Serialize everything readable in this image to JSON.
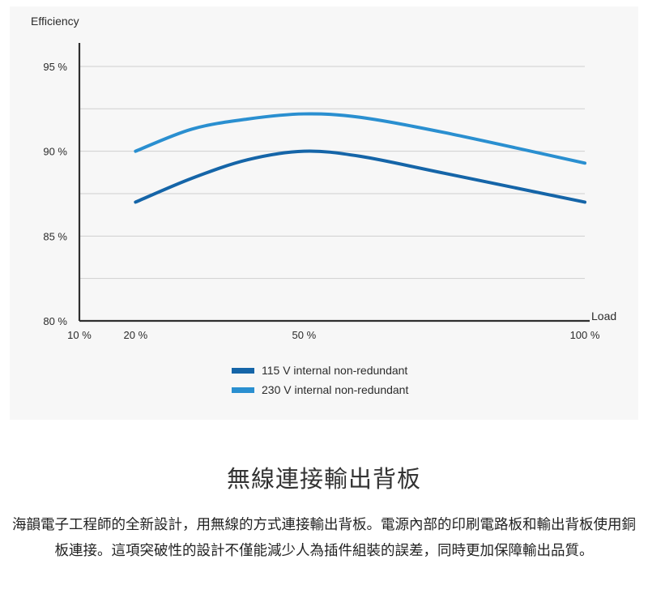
{
  "chart_data": {
    "type": "line",
    "ylabel": "Efficiency",
    "xlabel": "Load",
    "xlim": [
      10,
      100
    ],
    "ylim": [
      80,
      96
    ],
    "x_ticks": [
      10,
      20,
      50,
      100
    ],
    "x_tick_labels": [
      "10 %",
      "20 %",
      "50 %",
      "100 %"
    ],
    "y_ticks": [
      80,
      85,
      90,
      95
    ],
    "y_tick_labels": [
      "80 %",
      "85 %",
      "90 %",
      "95 %"
    ],
    "gridlines_y": [
      82.5,
      85,
      87.5,
      90,
      92.5,
      95
    ],
    "grid": true,
    "legend_position": "bottom-center",
    "series": [
      {
        "name": "115 V internal non-redundant",
        "color": "#1565a8",
        "points": [
          [
            20,
            87.0
          ],
          [
            30,
            88.4
          ],
          [
            40,
            89.5
          ],
          [
            50,
            90.0
          ],
          [
            60,
            89.7
          ],
          [
            75,
            88.7
          ],
          [
            100,
            87.0
          ]
        ]
      },
      {
        "name": "230 V internal non-redundant",
        "color": "#2a8fd0",
        "points": [
          [
            20,
            90.0
          ],
          [
            30,
            91.3
          ],
          [
            40,
            91.9
          ],
          [
            50,
            92.2
          ],
          [
            60,
            92.0
          ],
          [
            75,
            91.1
          ],
          [
            100,
            89.3
          ]
        ]
      }
    ]
  },
  "section": {
    "title": "無線連接輸出背板",
    "body": "海韻電子工程師的全新設計，用無線的方式連接輸出背板。電源內部的印刷電路板和輸出背板使用銅板連接。這項突破性的設計不僅能減少人為插件組裝的誤差，同時更加保障輸出品質。"
  }
}
